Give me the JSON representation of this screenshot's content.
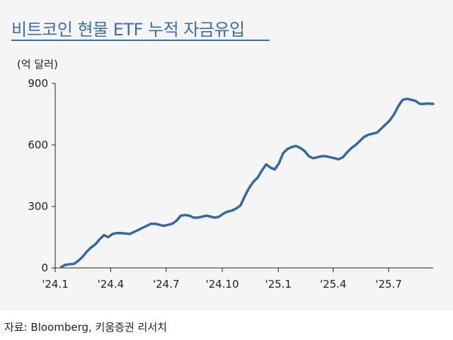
{
  "title": "비트코인 현물 ETF 누적 자금유입",
  "source": "자료: Bloomberg, 키움증권 리서치",
  "colors": {
    "title": "#3a6fb0",
    "line": "#2f6bab",
    "panel_background": "#f5f5f5"
  },
  "chart_data": {
    "type": "line",
    "title": "비트코인 현물 ETF 누적 자금유입",
    "ylabel": "(억 달러)",
    "xlabel": "",
    "ylim": [
      0,
      900
    ],
    "yticks": [
      0,
      300,
      600,
      900
    ],
    "xlim": [
      "2024-01-11",
      "2025-09-12"
    ],
    "xticks": [
      {
        "label": "'24.1",
        "date": "2024-01-01"
      },
      {
        "label": "'24.4",
        "date": "2024-04-01"
      },
      {
        "label": "'24.7",
        "date": "2024-07-01"
      },
      {
        "label": "'24.10",
        "date": "2024-10-01"
      },
      {
        "label": "'25.1",
        "date": "2025-01-01"
      },
      {
        "label": "'25.4",
        "date": "2025-04-01"
      },
      {
        "label": "'25.7",
        "date": "2025-07-01"
      }
    ],
    "grid": false,
    "legend": "none",
    "series": [
      {
        "x": [
          "2024-01-11",
          "2024-01-18",
          "2024-01-25",
          "2024-02-01",
          "2024-02-08",
          "2024-02-15",
          "2024-02-22",
          "2024-02-29",
          "2024-03-07",
          "2024-03-14",
          "2024-03-21",
          "2024-03-28",
          "2024-04-04",
          "2024-04-11",
          "2024-04-18",
          "2024-04-25",
          "2024-05-02",
          "2024-05-09",
          "2024-05-16",
          "2024-05-23",
          "2024-05-30",
          "2024-06-06",
          "2024-06-13",
          "2024-06-20",
          "2024-06-27",
          "2024-07-04",
          "2024-07-11",
          "2024-07-18",
          "2024-07-25",
          "2024-08-01",
          "2024-08-08",
          "2024-08-15",
          "2024-08-22",
          "2024-08-29",
          "2024-09-05",
          "2024-09-12",
          "2024-09-19",
          "2024-09-26",
          "2024-10-03",
          "2024-10-10",
          "2024-10-17",
          "2024-10-24",
          "2024-10-31",
          "2024-11-07",
          "2024-11-14",
          "2024-11-21",
          "2024-11-28",
          "2024-12-05",
          "2024-12-12",
          "2024-12-19",
          "2024-12-26",
          "2025-01-02",
          "2025-01-09",
          "2025-01-16",
          "2025-01-23",
          "2025-01-30",
          "2025-02-06",
          "2025-02-13",
          "2025-02-20",
          "2025-02-27",
          "2025-03-06",
          "2025-03-13",
          "2025-03-20",
          "2025-03-27",
          "2025-04-03",
          "2025-04-10",
          "2025-04-17",
          "2025-04-24",
          "2025-05-01",
          "2025-05-08",
          "2025-05-15",
          "2025-05-22",
          "2025-05-29",
          "2025-06-05",
          "2025-06-12",
          "2025-06-19",
          "2025-06-26",
          "2025-07-03",
          "2025-07-10",
          "2025-07-17",
          "2025-07-24",
          "2025-07-31",
          "2025-08-07",
          "2025-08-14",
          "2025-08-21",
          "2025-08-28",
          "2025-09-04",
          "2025-09-12"
        ],
        "y": [
          5,
          15,
          18,
          20,
          35,
          55,
          80,
          100,
          115,
          140,
          160,
          150,
          165,
          170,
          170,
          168,
          165,
          175,
          185,
          195,
          205,
          215,
          215,
          210,
          205,
          210,
          215,
          230,
          255,
          258,
          255,
          245,
          245,
          250,
          255,
          250,
          245,
          250,
          265,
          275,
          280,
          290,
          305,
          350,
          390,
          420,
          440,
          475,
          505,
          490,
          480,
          510,
          560,
          580,
          590,
          595,
          585,
          570,
          545,
          535,
          540,
          545,
          545,
          540,
          535,
          530,
          540,
          565,
          585,
          600,
          620,
          640,
          650,
          655,
          660,
          680,
          700,
          720,
          750,
          790,
          820,
          825,
          820,
          815,
          800,
          800,
          802,
          800
        ]
      }
    ]
  }
}
